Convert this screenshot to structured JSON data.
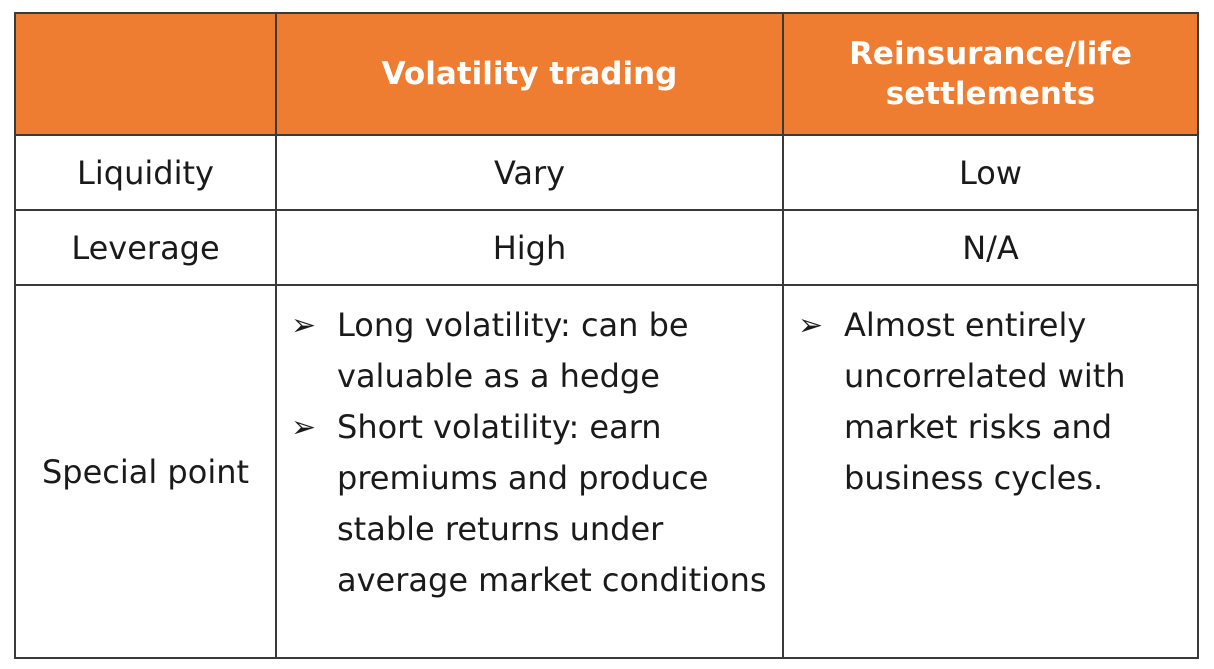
{
  "table": {
    "header": {
      "corner": "",
      "col1": "Volatility trading",
      "col2_line1": "Reinsurance/life",
      "col2_line2": "settlements"
    },
    "rows": [
      {
        "label": "Liquidity",
        "volatility": "Vary",
        "reinsurance": "Low"
      },
      {
        "label": "Leverage",
        "volatility": "High",
        "reinsurance": "N/A"
      }
    ],
    "special": {
      "label": "Special point",
      "volatility_bullets": [
        "Long volatility: can be valuable as a hedge",
        "Short volatility: earn premiums and produce stable returns under average market conditions"
      ],
      "reinsurance_bullets": [
        "Almost entirely uncorrelated with market risks and business cycles."
      ]
    },
    "bullet_icon": "arrowhead-bullet-icon",
    "colors": {
      "header_bg": "#ee7d31",
      "header_text": "#ffffff",
      "border": "#3a3a3a"
    }
  }
}
